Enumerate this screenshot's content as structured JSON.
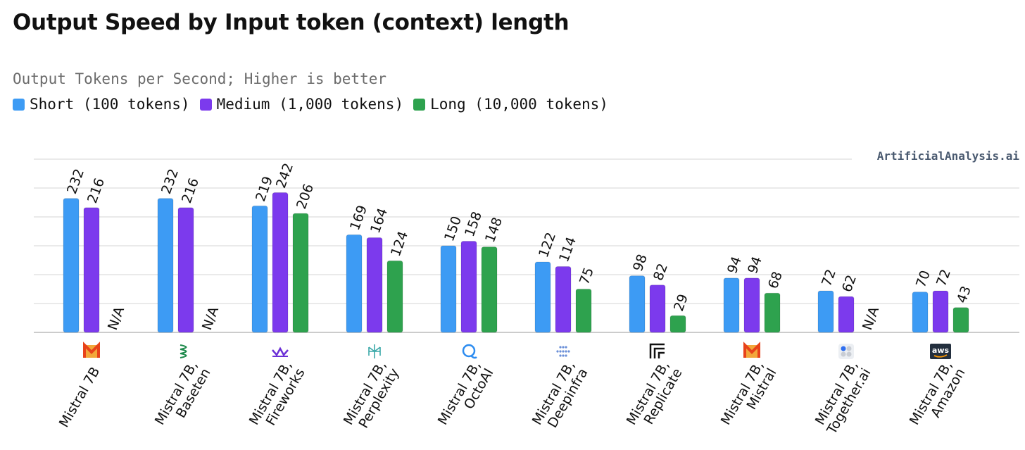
{
  "title": "Output Speed by Input token (context) length",
  "subtitle": "Output Tokens per Second; Higher is better",
  "source": "ArtificialAnalysis.ai",
  "colors": {
    "short": "#3d9bf4",
    "medium": "#7c3aed",
    "long": "#2ea24e",
    "grid": "#d4d4d4",
    "axis": "#bbbbbb"
  },
  "legend": [
    {
      "label": "Short (100 tokens)",
      "color": "#3d9bf4"
    },
    {
      "label": "Medium (1,000 tokens)",
      "color": "#7c3aed"
    },
    {
      "label": "Long (10,000 tokens)",
      "color": "#2ea24e"
    }
  ],
  "na_label": "N/A",
  "chart_data": {
    "type": "bar",
    "title": "Output Speed by Input token (context) length",
    "subtitle": "Output Tokens per Second; Higher is better",
    "ylim": [
      0,
      300
    ],
    "grid": true,
    "legend_position": "top-left",
    "categories": [
      {
        "line1": "Mistral 7B",
        "line2": "",
        "icon": "mistral-icon"
      },
      {
        "line1": "Mistral 7B,",
        "line2": "Baseten",
        "icon": "baseten-icon"
      },
      {
        "line1": "Mistral 7B,",
        "line2": "Fireworks",
        "icon": "fireworks-icon"
      },
      {
        "line1": "Mistral 7B,",
        "line2": "Perplexity",
        "icon": "perplexity-icon"
      },
      {
        "line1": "Mistral 7B,",
        "line2": "OctoAI",
        "icon": "octoai-icon"
      },
      {
        "line1": "Mistral 7B,",
        "line2": "Deepinfra",
        "icon": "deepinfra-icon"
      },
      {
        "line1": "Mistral 7B,",
        "line2": "Replicate",
        "icon": "replicate-icon"
      },
      {
        "line1": "Mistral 7B,",
        "line2": "Mistral",
        "icon": "mistral-icon"
      },
      {
        "line1": "Mistral 7B,",
        "line2": "Together.ai",
        "icon": "together-icon"
      },
      {
        "line1": "Mistral 7B,",
        "line2": "Amazon",
        "icon": "aws-icon"
      }
    ],
    "series": [
      {
        "name": "Short (100 tokens)",
        "key": "short",
        "values": [
          232,
          232,
          219,
          169,
          150,
          122,
          98,
          94,
          72,
          70
        ]
      },
      {
        "name": "Medium (1,000 tokens)",
        "key": "medium",
        "values": [
          216,
          216,
          242,
          164,
          158,
          114,
          82,
          94,
          62,
          72
        ]
      },
      {
        "name": "Long (10,000 tokens)",
        "key": "long",
        "values": [
          null,
          null,
          206,
          124,
          148,
          75,
          29,
          68,
          null,
          43
        ]
      }
    ]
  }
}
